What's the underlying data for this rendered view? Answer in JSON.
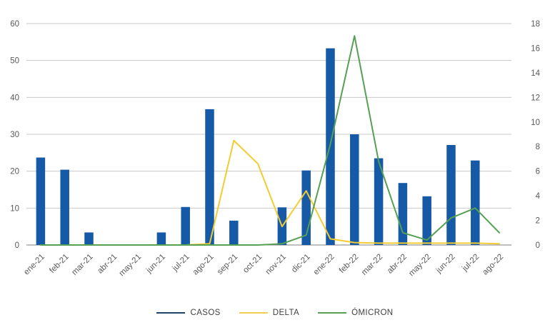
{
  "chart": {
    "title": "",
    "background": "#ffffff",
    "gridline_color": "#c9c9c9",
    "axis_line_color": "#7f7f7f",
    "tick_label_color": "#595959",
    "legend_text_color": "#404040",
    "legend_position": "bottom-center"
  },
  "chart_data": {
    "type": "bar",
    "combo": "bar + line, dual y-axis",
    "title": "",
    "xlabel": "",
    "ylabel": "",
    "grid": "horizontal",
    "legend_position": "bottom-center",
    "categories": [
      "ene-21",
      "feb-21",
      "mar-21",
      "abr-21",
      "may-21",
      "jun-21",
      "jul-21",
      "ago-21",
      "sep-21",
      "oct-21",
      "nov-21",
      "dic-21",
      "ene-22",
      "feb-22",
      "mar-22",
      "abr-22",
      "may-22",
      "jun-22",
      "jul-22",
      "ago-22"
    ],
    "y_left": {
      "min": 0,
      "max": 60,
      "step": 10,
      "ticks": [
        0,
        10,
        20,
        30,
        40,
        50,
        60
      ]
    },
    "y_right": {
      "min": 0,
      "max": 18,
      "step": 2,
      "ticks": [
        0,
        2,
        4,
        6,
        8,
        10,
        12,
        14,
        16,
        18
      ]
    },
    "series": [
      {
        "name": "CASOS",
        "type": "bar",
        "axis": "left",
        "color": "#1659a6",
        "legend_color": "#1f4466",
        "values": [
          23.7,
          20.4,
          3.4,
          0,
          0,
          3.4,
          10.3,
          36.8,
          6.6,
          0,
          10.2,
          20.2,
          53.3,
          30,
          23.5,
          16.8,
          13.2,
          27.1,
          22.9,
          0
        ]
      },
      {
        "name": "DELTA",
        "type": "line",
        "axis": "right",
        "color": "#f3cc32",
        "legend_color": "#f0d04a",
        "values": [
          0,
          0,
          0,
          0,
          0,
          0,
          0,
          0.1,
          8.5,
          6.6,
          1.5,
          4.4,
          0.5,
          0.2,
          0.15,
          0.15,
          0.15,
          0.15,
          0.15,
          0.1
        ]
      },
      {
        "name": "ÓMICRON",
        "type": "line",
        "axis": "right",
        "color": "#55a052",
        "legend_color": "#55a052",
        "values": [
          0,
          0,
          0,
          0,
          0,
          0,
          0,
          0,
          0,
          0,
          0.1,
          0.8,
          8.2,
          17,
          6.8,
          1,
          0.4,
          2.2,
          3,
          1
        ]
      }
    ]
  }
}
